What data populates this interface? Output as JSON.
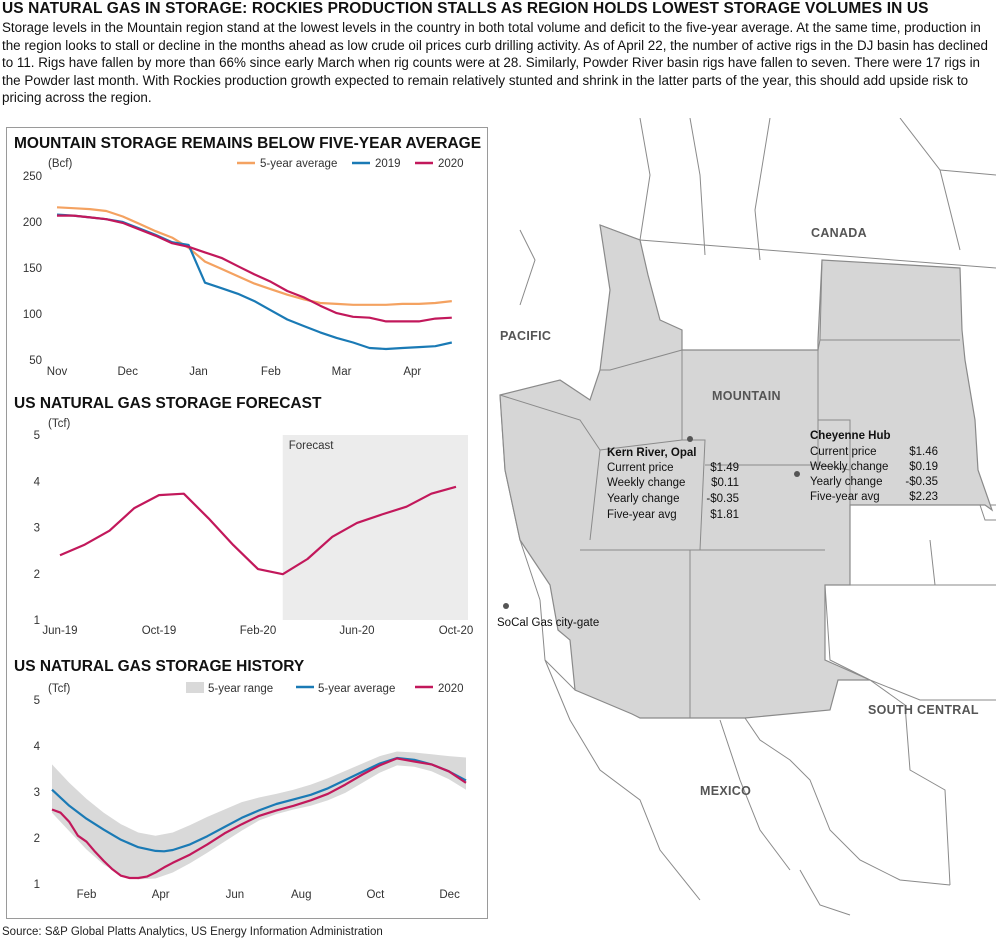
{
  "header": {
    "title": "US NATURAL GAS IN STORAGE: ROCKIES PRODUCTION STALLS AS REGION HOLDS LOWEST STORAGE VOLUMES IN US",
    "intro": "Storage levels in the Mountain region stand at the lowest levels in the country in both total volume and deficit to the five-year average. At the same time, production in the region looks to stall or decline in the months ahead as low crude oil prices curb drilling activity. As of April 22, the number of active rigs in the DJ basin has declined to 11. Rigs have fallen by more than 66% since early March when rig counts were at 28. Similarly, Powder River basin rigs have fallen to seven. There were 17 rigs in the Powder last month. With Rockies production growth expected to remain relatively stunted and shrink in the latter parts of the year, this should add upside risk to pricing across the region."
  },
  "source": "Source: S&P Global Platts Analytics, US Energy Information Administration",
  "colors": {
    "five_year_avg_orange": "#f4a261",
    "y2019_blue": "#1a7ab5",
    "y2020_magenta": "#c2185b",
    "forecast_shade": "#ececec",
    "range_shade": "#d9d9d9",
    "map_fill": "#d6d6d6",
    "map_border": "#8a8a8a"
  },
  "map": {
    "regions": [
      "CANADA",
      "PACIFIC",
      "MOUNTAIN",
      "SOUTH CENTRAL",
      "MEXICO"
    ],
    "hubs": [
      {
        "name": "Kern River, Opal",
        "rows": [
          [
            "Current price",
            "$1.49"
          ],
          [
            "Weekly change",
            "$0.11"
          ],
          [
            "Yearly change",
            "-$0.35"
          ],
          [
            "Five-year avg",
            "$1.81"
          ]
        ]
      },
      {
        "name": "Cheyenne Hub",
        "rows": [
          [
            "Current price",
            "$1.46"
          ],
          [
            "Weekly change",
            "$0.19"
          ],
          [
            "Yearly change",
            "-$0.35"
          ],
          [
            "Five-year avg",
            "$2.23"
          ]
        ]
      },
      {
        "name": "SoCal Gas city-gate",
        "rows": []
      }
    ]
  },
  "chart_data": [
    {
      "type": "line",
      "title": "MOUNTAIN STORAGE REMAINS BELOW FIVE-YEAR AVERAGE",
      "ylabel": "(Bcf)",
      "xlabel": "",
      "ylim": [
        50,
        250
      ],
      "yticks": [
        250,
        200,
        150,
        100,
        50
      ],
      "xtick_labels": [
        "Nov",
        "Dec",
        "Jan",
        "Feb",
        "Mar",
        "Apr"
      ],
      "xlim": [
        0,
        24.5
      ],
      "xtick_positions": [
        0,
        4.3,
        8.6,
        13,
        17.3,
        21.6
      ],
      "legend": [
        "5-year average",
        "2019",
        "2020"
      ],
      "legend_position": "top-right",
      "grid": false,
      "series": [
        {
          "name": "5-year average",
          "color": "#f4a261",
          "x": [
            0,
            1,
            2,
            3,
            4,
            5,
            6,
            7,
            8,
            9,
            10,
            11,
            12,
            13,
            14,
            15,
            16,
            17,
            18,
            19,
            20,
            21,
            22,
            23,
            24
          ],
          "values": [
            216,
            215,
            214,
            212,
            206,
            198,
            190,
            183,
            172,
            157,
            149,
            141,
            133,
            127,
            121,
            116,
            112,
            111,
            110,
            110,
            110,
            111,
            111,
            112,
            114
          ]
        },
        {
          "name": "2019",
          "color": "#1a7ab5",
          "x": [
            0,
            1,
            2,
            3,
            4,
            5,
            6,
            7,
            8,
            9,
            10,
            11,
            12,
            13,
            14,
            15,
            16,
            17,
            18,
            19,
            20,
            21,
            22,
            23,
            24
          ],
          "values": [
            208,
            207,
            205,
            203,
            200,
            193,
            186,
            178,
            175,
            134,
            128,
            122,
            114,
            104,
            94,
            87,
            80,
            74,
            69,
            63,
            62,
            63,
            64,
            65,
            69
          ]
        },
        {
          "name": "2020",
          "color": "#c2185b",
          "x": [
            0,
            1,
            2,
            3,
            4,
            5,
            6,
            7,
            8,
            9,
            10,
            11,
            12,
            13,
            14,
            15,
            16,
            17,
            18,
            19,
            20,
            21,
            22,
            23,
            24
          ],
          "values": [
            207,
            207,
            205,
            203,
            199,
            192,
            185,
            177,
            173,
            167,
            161,
            152,
            143,
            135,
            125,
            118,
            109,
            101,
            97,
            96,
            92,
            92,
            92,
            95,
            96
          ]
        }
      ]
    },
    {
      "type": "line",
      "title": "US NATURAL GAS STORAGE FORECAST",
      "ylabel": "(Tcf)",
      "xlabel": "",
      "ylim": [
        1,
        5
      ],
      "yticks": [
        5,
        4,
        3,
        2,
        1
      ],
      "xtick_labels": [
        "Jun-19",
        "Oct-19",
        "Feb-20",
        "Jun-20",
        "Oct-20"
      ],
      "xtick_positions": [
        0,
        4,
        8,
        12,
        16
      ],
      "xlim": [
        0,
        16
      ],
      "forecast_label": "Forecast",
      "forecast_start": 9,
      "grid": false,
      "series": [
        {
          "name": "Storage",
          "color": "#c2185b",
          "x": [
            0,
            1,
            2,
            3,
            4,
            5,
            6,
            7,
            8,
            9,
            10,
            11,
            12,
            13,
            14,
            15,
            16
          ],
          "values": [
            2.4,
            2.63,
            2.93,
            3.42,
            3.7,
            3.73,
            3.2,
            2.62,
            2.1,
            1.99,
            2.32,
            2.8,
            3.1,
            3.28,
            3.45,
            3.73,
            3.88
          ]
        }
      ]
    },
    {
      "type": "line",
      "title": "US NATURAL GAS STORAGE HISTORY",
      "ylabel": "(Tcf)",
      "xlabel": "",
      "ylim": [
        1,
        5
      ],
      "yticks": [
        5,
        4,
        3,
        2,
        1
      ],
      "xtick_labels": [
        "Feb",
        "Apr",
        "Jun",
        "Aug",
        "Oct",
        "Dec"
      ],
      "xtick_positions": [
        4,
        12.6,
        21.2,
        28.9,
        37.5,
        46.1
      ],
      "xlim": [
        0,
        48
      ],
      "legend": [
        "5-year range",
        "5-year average",
        "2020"
      ],
      "legend_position": "top-right",
      "grid": false,
      "range": {
        "name": "5-year range",
        "color": "#d9d9d9",
        "x": [
          0,
          2,
          4,
          6,
          8,
          10,
          12,
          14,
          16,
          18,
          20,
          22,
          24,
          26,
          28,
          30,
          32,
          34,
          36,
          38,
          40,
          42,
          44,
          46,
          48
        ],
        "upper": [
          3.6,
          3.2,
          2.85,
          2.55,
          2.3,
          2.12,
          2.05,
          2.12,
          2.28,
          2.46,
          2.62,
          2.78,
          2.88,
          2.96,
          3.05,
          3.16,
          3.3,
          3.46,
          3.62,
          3.78,
          3.88,
          3.86,
          3.82,
          3.78,
          3.75
        ],
        "lower": [
          2.55,
          2.15,
          1.75,
          1.42,
          1.2,
          1.1,
          1.12,
          1.25,
          1.45,
          1.68,
          1.92,
          2.16,
          2.38,
          2.52,
          2.62,
          2.7,
          2.82,
          2.98,
          3.2,
          3.42,
          3.58,
          3.55,
          3.45,
          3.28,
          3.05
        ]
      },
      "series": [
        {
          "name": "5-year average",
          "color": "#1a7ab5",
          "x": [
            0,
            2,
            4,
            6,
            8,
            10,
            12,
            13,
            14,
            16,
            18,
            20,
            22,
            24,
            26,
            28,
            30,
            32,
            34,
            36,
            38,
            40,
            42,
            44,
            46,
            48
          ],
          "values": [
            3.05,
            2.7,
            2.42,
            2.18,
            1.96,
            1.8,
            1.72,
            1.71,
            1.74,
            1.86,
            2.04,
            2.24,
            2.44,
            2.6,
            2.74,
            2.84,
            2.94,
            3.08,
            3.26,
            3.44,
            3.62,
            3.74,
            3.7,
            3.6,
            3.45,
            3.25
          ]
        },
        {
          "name": "2020",
          "color": "#c2185b",
          "x": [
            0,
            1,
            2,
            3,
            4,
            5,
            6,
            7,
            8,
            9,
            10,
            11,
            12,
            13,
            14,
            16,
            18,
            20,
            22,
            24,
            26,
            28,
            30,
            32,
            34,
            36,
            38,
            40,
            42,
            44,
            46,
            48
          ],
          "values": [
            2.62,
            2.55,
            2.35,
            2.05,
            1.92,
            1.7,
            1.5,
            1.32,
            1.18,
            1.13,
            1.13,
            1.16,
            1.25,
            1.36,
            1.46,
            1.64,
            1.86,
            2.1,
            2.3,
            2.48,
            2.6,
            2.7,
            2.82,
            2.96,
            3.16,
            3.38,
            3.58,
            3.73,
            3.66,
            3.6,
            3.45,
            3.2
          ]
        }
      ]
    }
  ]
}
